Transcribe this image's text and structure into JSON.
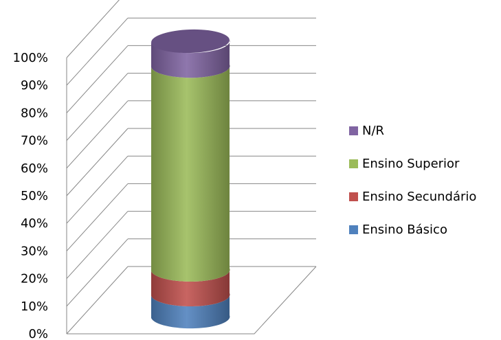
{
  "chart_data": {
    "type": "bar",
    "subtype": "3d-stacked-100-cylinder",
    "title": "",
    "xlabel": "",
    "ylabel": "",
    "ylim": [
      0,
      100
    ],
    "y_ticks": [
      "0%",
      "10%",
      "20%",
      "30%",
      "40%",
      "50%",
      "60%",
      "70%",
      "80%",
      "90%",
      "100%"
    ],
    "categories": [
      ""
    ],
    "grid": true,
    "legend_position": "right",
    "series": [
      {
        "name": "Ensino Básico",
        "values": [
          8
        ],
        "color": "#4F81BD"
      },
      {
        "name": "Ensino Secundário",
        "values": [
          9
        ],
        "color": "#C0504D"
      },
      {
        "name": "Ensino Superior",
        "values": [
          74
        ],
        "color": "#9BBB59"
      },
      {
        "name": "N/R",
        "values": [
          9
        ],
        "color": "#8064A2"
      }
    ]
  }
}
